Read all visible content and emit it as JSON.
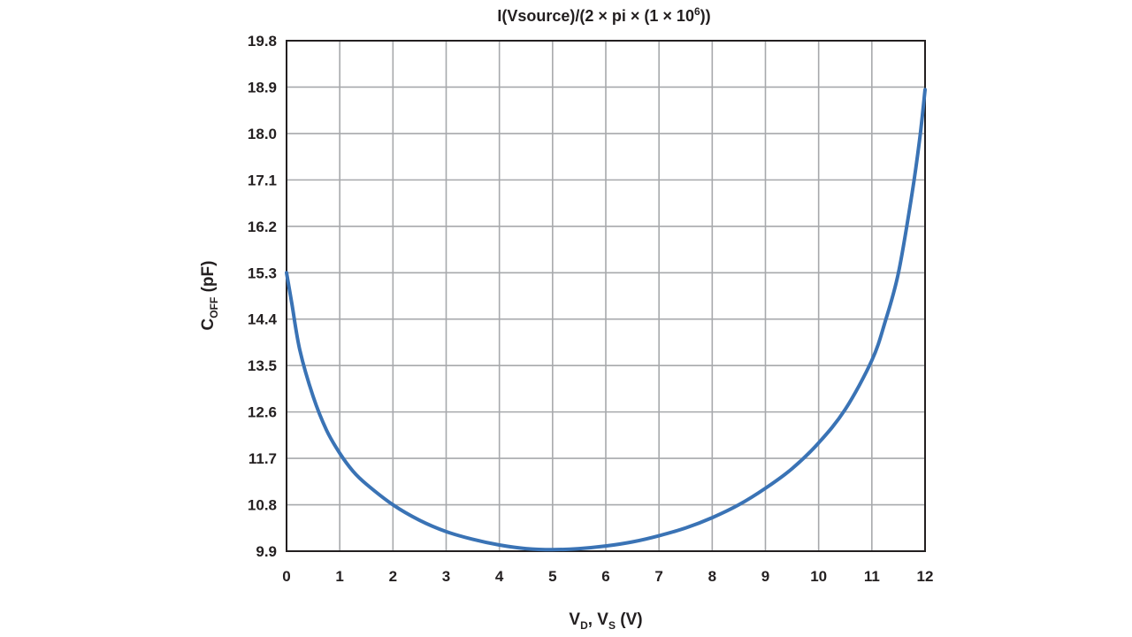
{
  "chart_data": {
    "type": "line",
    "title": {
      "pre": "I(Vsource)/(2 × pi × (1 × 10",
      "sup": "6",
      "post": "))"
    },
    "xlabel": {
      "main1": "V",
      "sub1": "D",
      "mid": ", V",
      "sub2": "S",
      "post": " (V)"
    },
    "ylabel": {
      "main": "C",
      "sub": "OFF",
      "post": " (pF)"
    },
    "xlim": [
      0,
      12
    ],
    "ylim": [
      9.9,
      19.8
    ],
    "x_ticks": [
      "0",
      "1",
      "2",
      "3",
      "4",
      "5",
      "6",
      "7",
      "8",
      "9",
      "10",
      "11",
      "12"
    ],
    "y_ticks": [
      "9.9",
      "10.8",
      "11.7",
      "12.6",
      "13.5",
      "14.4",
      "15.3",
      "16.2",
      "17.1",
      "18.0",
      "18.9",
      "19.8"
    ],
    "grid": true,
    "line_color": "#3a73b5",
    "series": [
      {
        "name": "",
        "x": [
          0,
          0.1,
          0.25,
          0.5,
          0.75,
          1.0,
          1.25,
          1.5,
          2.0,
          2.5,
          3.0,
          3.5,
          4.0,
          4.5,
          5.0,
          5.5,
          6.0,
          6.5,
          7.0,
          7.5,
          8.0,
          8.5,
          9.0,
          9.5,
          10.0,
          10.5,
          11.0,
          11.25,
          11.5,
          11.75,
          11.9,
          12.0
        ],
        "y": [
          15.3,
          14.7,
          13.8,
          12.9,
          12.25,
          11.8,
          11.45,
          11.2,
          10.8,
          10.5,
          10.28,
          10.13,
          10.02,
          9.95,
          9.93,
          9.95,
          10.0,
          10.08,
          10.2,
          10.35,
          10.55,
          10.8,
          11.12,
          11.5,
          12.0,
          12.65,
          13.6,
          14.35,
          15.3,
          16.8,
          17.9,
          18.85
        ]
      }
    ]
  }
}
